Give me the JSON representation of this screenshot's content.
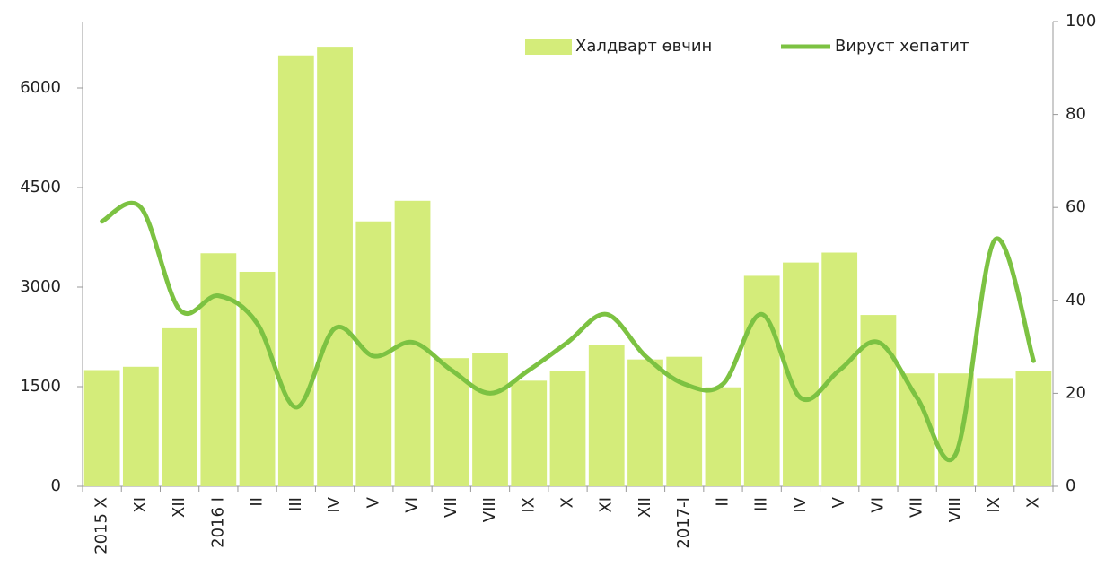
{
  "chart_data": {
    "type": "bar-line",
    "categories": [
      "2015 X",
      "XI",
      "XII",
      "2016 I",
      "II",
      "III",
      "IV",
      "V",
      "VI",
      "VII",
      "VIII",
      "IX",
      "X",
      "XI",
      "XII",
      "2017-I",
      "II",
      "III",
      "IV",
      "V",
      "VI",
      "VII",
      "VIII",
      "IX",
      "X"
    ],
    "series": [
      {
        "name": "Халдварт өвчин",
        "color": "#d4ec7a",
        "type": "bar",
        "values": [
          1750,
          1800,
          2380,
          3510,
          3230,
          6490,
          6620,
          3990,
          4300,
          1930,
          2000,
          1590,
          1740,
          2130,
          1910,
          1950,
          1490,
          3170,
          3370,
          3520,
          2580,
          1700,
          1700,
          1630,
          1730
        ]
      },
      {
        "name": "Вируст хепатит",
        "color": "#7cc242",
        "type": "line",
        "axis": "y2",
        "values": [
          57,
          60,
          38,
          41,
          35,
          17,
          34,
          28,
          31,
          25,
          20,
          25,
          31,
          37,
          28,
          22,
          22,
          37,
          19,
          25,
          31,
          19,
          7,
          53,
          27
        ]
      }
    ],
    "ylim": [
      0,
      7000
    ],
    "yticks": [
      0,
      1500,
      3000,
      4500,
      6000
    ],
    "y2lim": [
      0,
      100
    ],
    "y2ticks": [
      0,
      20,
      40,
      60,
      80,
      100
    ],
    "legend": "top-right"
  }
}
